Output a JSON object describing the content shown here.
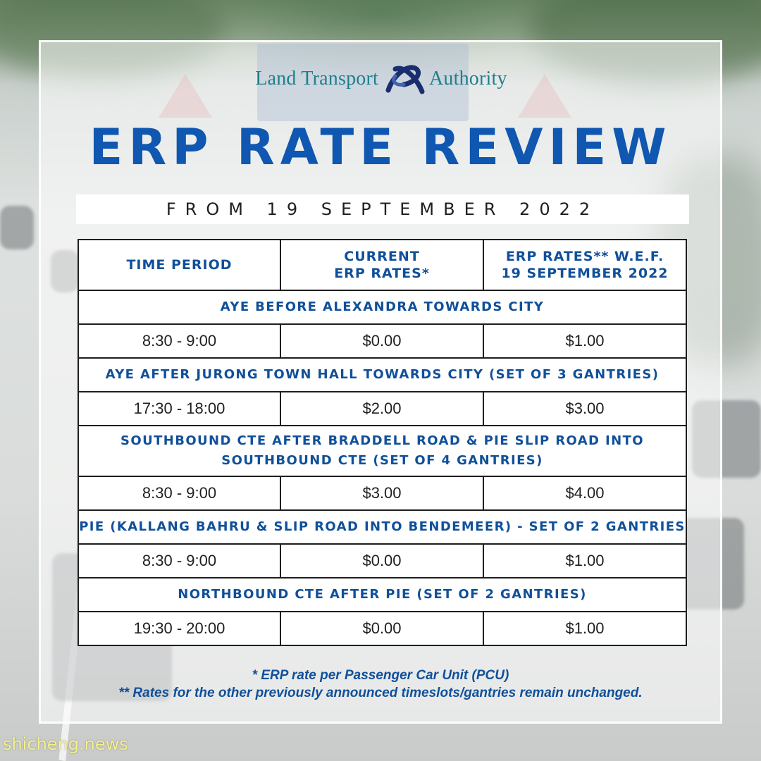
{
  "logo": {
    "left_text": "Land Transport",
    "right_text": "Authority"
  },
  "title": "ERP RATE REVIEW",
  "subtitle": "FROM 19 SEPTEMBER 2022",
  "table": {
    "headers": [
      "TIME PERIOD",
      "CURRENT\nERP RATES*",
      "ERP RATES** W.E.F.\n19 SEPTEMBER 2022"
    ],
    "sections": [
      {
        "name": "AYE BEFORE ALEXANDRA TOWARDS CITY",
        "row": [
          "8:30 - 9:00",
          "$0.00",
          "$1.00"
        ]
      },
      {
        "name": "AYE AFTER JURONG TOWN HALL TOWARDS CITY (SET OF 3 GANTRIES)",
        "row": [
          "17:30 - 18:00",
          "$2.00",
          "$3.00"
        ]
      },
      {
        "name": "SOUTHBOUND CTE AFTER BRADDELL ROAD & PIE SLIP ROAD INTO\nSOUTHBOUND CTE (SET OF 4 GANTRIES)",
        "row": [
          "8:30 - 9:00",
          "$3.00",
          "$4.00"
        ]
      },
      {
        "name": "PIE (KALLANG BAHRU & SLIP ROAD INTO BENDEMEER) - SET OF 2 GANTRIES",
        "row": [
          "8:30 - 9:00",
          "$0.00",
          "$1.00"
        ]
      },
      {
        "name": "NORTHBOUND CTE AFTER PIE (SET OF 2 GANTRIES)",
        "row": [
          "19:30 - 20:00",
          "$0.00",
          "$1.00"
        ]
      }
    ]
  },
  "footnotes": [
    "* ERP rate per Passenger Car Unit (PCU)",
    "** Rates for the other previously announced timeslots/gantries remain unchanged."
  ],
  "watermark": "shicheng.news",
  "colors": {
    "title_blue": "#0f57b0",
    "table_text_blue": "#10509a",
    "logo_teal": "#1f7f8c",
    "logo_navy": "#1a2d6e",
    "watermark_yellow": "#f5f08a"
  },
  "icons": [
    "lta-ribbon-logo-icon"
  ]
}
